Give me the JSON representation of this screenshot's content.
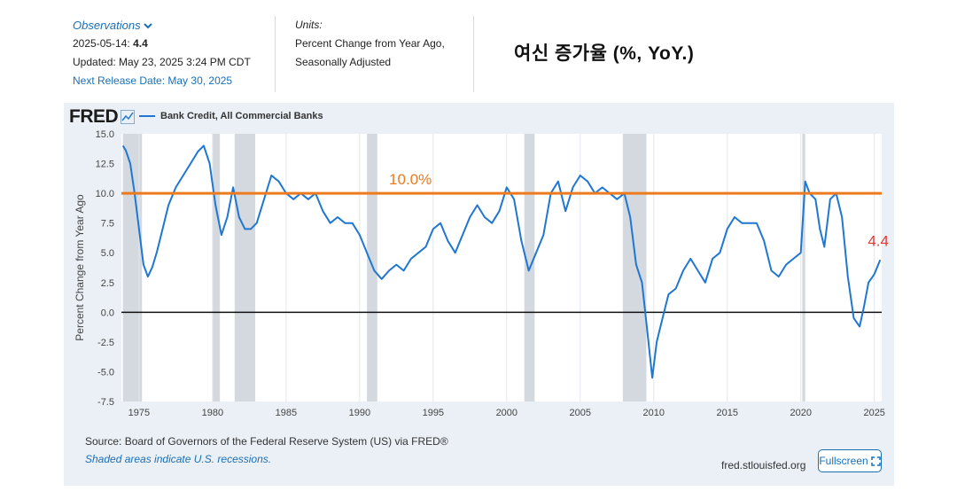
{
  "header": {
    "observations_label": "Observations",
    "obs_date_prefix": "2025-05-14:",
    "obs_value": "4.4",
    "updated": "Updated: May 23, 2025 3:24 PM CDT",
    "next_release": "Next Release Date: May 30, 2025",
    "units_label": "Units:",
    "units_line1": "Percent Change from Year Ago,",
    "units_line2": "Seasonally Adjusted",
    "korean_title": "여신 증가율 (%, YoY.)"
  },
  "panel": {
    "logo": "FRED",
    "source": "Source: Board of Governors of the Federal Reserve System (US) via FRED®",
    "note": "Shaded areas indicate U.S. recessions.",
    "site": "fred.stlouisfed.org",
    "fullscreen": "Fullscreen"
  },
  "colors": {
    "line": "#1f77d2",
    "reference": "#ee7a1e",
    "last_label": "#e53935",
    "recession": "#d3d9df"
  },
  "chart_data": {
    "type": "line",
    "series": [
      {
        "name": "Bank Credit, All Commercial Banks",
        "x": [
          1973.9,
          1974.1,
          1974.4,
          1974.7,
          1975.0,
          1975.3,
          1975.6,
          1975.9,
          1976.2,
          1976.6,
          1977.0,
          1977.5,
          1978.0,
          1978.5,
          1979.0,
          1979.4,
          1979.8,
          1980.2,
          1980.6,
          1981.0,
          1981.4,
          1981.8,
          1982.2,
          1982.6,
          1983.0,
          1983.5,
          1984.0,
          1984.5,
          1985.0,
          1985.5,
          1986.0,
          1986.5,
          1987.0,
          1987.5,
          1988.0,
          1988.5,
          1989.0,
          1989.5,
          1990.0,
          1990.5,
          1991.0,
          1991.5,
          1992.0,
          1992.5,
          1993.0,
          1993.5,
          1994.0,
          1994.5,
          1995.0,
          1995.5,
          1996.0,
          1996.5,
          1997.0,
          1997.5,
          1998.0,
          1998.5,
          1999.0,
          1999.5,
          2000.0,
          2000.5,
          2001.0,
          2001.5,
          2002.0,
          2002.5,
          2003.0,
          2003.5,
          2004.0,
          2004.5,
          2005.0,
          2005.5,
          2006.0,
          2006.5,
          2007.0,
          2007.5,
          2008.0,
          2008.4,
          2008.8,
          2009.2,
          2009.6,
          2009.9,
          2010.2,
          2010.6,
          2011.0,
          2011.5,
          2012.0,
          2012.5,
          2013.0,
          2013.5,
          2014.0,
          2014.5,
          2015.0,
          2015.5,
          2016.0,
          2016.5,
          2017.0,
          2017.5,
          2018.0,
          2018.5,
          2019.0,
          2019.5,
          2020.0,
          2020.3,
          2020.6,
          2021.0,
          2021.3,
          2021.6,
          2022.0,
          2022.4,
          2022.8,
          2023.2,
          2023.6,
          2024.0,
          2024.3,
          2024.6,
          2025.0,
          2025.4
        ],
        "values": [
          14.0,
          13.6,
          12.5,
          10.0,
          7.0,
          4.0,
          3.0,
          3.8,
          5.0,
          7.0,
          9.0,
          10.5,
          11.5,
          12.5,
          13.5,
          14.0,
          12.5,
          9.0,
          6.5,
          8.0,
          10.5,
          8.0,
          7.0,
          7.0,
          7.5,
          9.5,
          11.5,
          11.0,
          10.0,
          9.5,
          10.0,
          9.5,
          10.0,
          8.5,
          7.5,
          8.0,
          7.5,
          7.5,
          6.5,
          5.0,
          3.5,
          2.8,
          3.5,
          4.0,
          3.5,
          4.5,
          5.0,
          5.5,
          7.0,
          7.5,
          6.0,
          5.0,
          6.5,
          8.0,
          9.0,
          8.0,
          7.5,
          8.5,
          10.5,
          9.5,
          6.0,
          3.5,
          5.0,
          6.5,
          10.0,
          11.0,
          8.5,
          10.5,
          11.5,
          11.0,
          10.0,
          10.5,
          10.0,
          9.5,
          10.0,
          8.0,
          4.0,
          2.5,
          -2.0,
          -5.5,
          -2.5,
          -0.5,
          1.5,
          2.0,
          3.5,
          4.5,
          3.5,
          2.5,
          4.5,
          5.0,
          7.0,
          8.0,
          7.5,
          7.5,
          7.5,
          6.0,
          3.5,
          3.0,
          4.0,
          4.5,
          5.0,
          11.0,
          10.0,
          9.5,
          7.0,
          5.5,
          9.5,
          10.0,
          8.0,
          3.0,
          -0.5,
          -1.2,
          0.5,
          2.5,
          3.2,
          4.4
        ]
      }
    ],
    "title": "",
    "xlabel": "",
    "ylabel": "Percent Change from Year Ago",
    "xlim": [
      1973.8,
      2025.5
    ],
    "ylim": [
      -7.5,
      15.0
    ],
    "yticks": [
      -7.5,
      -5.0,
      -2.5,
      0.0,
      2.5,
      5.0,
      7.5,
      10.0,
      12.5,
      15.0
    ],
    "ytick_labels": [
      "-7.5",
      "-5.0",
      "-2.5",
      "0.0",
      "2.5",
      "5.0",
      "7.5",
      "10.0",
      "12.5",
      "15.0"
    ],
    "xticks": [
      1975,
      1980,
      1985,
      1990,
      1995,
      2000,
      2005,
      2010,
      2015,
      2020,
      2025
    ],
    "xtick_labels": [
      "1975",
      "1980",
      "1985",
      "1990",
      "1995",
      "2000",
      "2005",
      "2010",
      "2015",
      "2020",
      "2025"
    ],
    "recessions": [
      [
        1973.9,
        1975.2
      ],
      [
        1980.0,
        1980.5
      ],
      [
        1981.5,
        1982.9
      ],
      [
        1990.5,
        1991.2
      ],
      [
        2001.2,
        2001.9
      ],
      [
        2007.9,
        2009.5
      ],
      [
        2020.1,
        2020.3
      ]
    ],
    "reference_line": {
      "value": 10.0,
      "label": "10.0%"
    },
    "zero_line": 0.0,
    "last_value_label": "4.4",
    "grid": "vertical",
    "legend": "top-left"
  }
}
